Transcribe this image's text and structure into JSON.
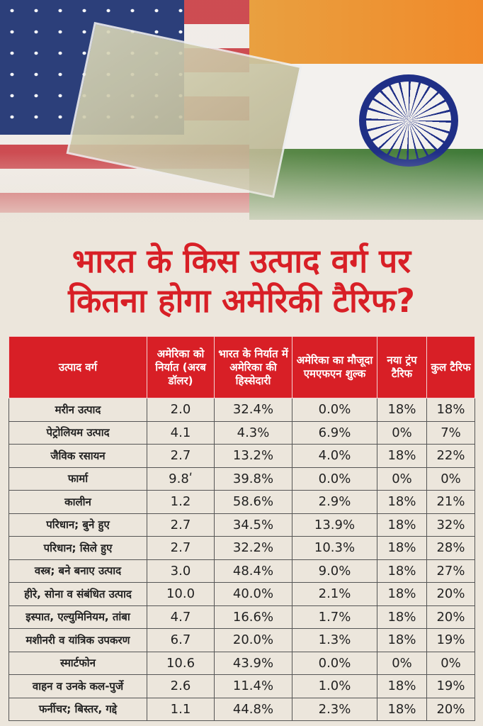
{
  "title": {
    "line1": "भारत के किस उत्पाद वर्ग पर",
    "line2": "कितना होगा अमेरिकी टैरिफ?"
  },
  "colors": {
    "accent": "#d81f26"
  },
  "table": {
    "headers": [
      "उत्पाद वर्ग",
      "अमेरिका को निर्यात (अरब डॉलर)",
      "भारत के निर्यात में अमेरिका की हिस्सेदारी",
      "अमेरिका का मौजूदा एमएफएन शुल्क",
      "नया ट्रंप टैरिफ",
      "कुल टैरिफ"
    ],
    "rows": [
      [
        "मरीन उत्पाद",
        "2.0",
        "32.4%",
        "0.0%",
        "18%",
        "18%"
      ],
      [
        "पेट्रोलियम उत्पाद",
        "4.1",
        "4.3%",
        "6.9%",
        "0%",
        "7%"
      ],
      [
        "जैविक रसायन",
        "2.7",
        "13.2%",
        "4.0%",
        "18%",
        "22%"
      ],
      [
        "फार्मा",
        "9.8ʹ",
        "39.8%",
        "0.0%",
        "0%",
        "0%"
      ],
      [
        "कालीन",
        "1.2",
        "58.6%",
        "2.9%",
        "18%",
        "21%"
      ],
      [
        "परिधान; बुने हुए",
        "2.7",
        "34.5%",
        "13.9%",
        "18%",
        "32%"
      ],
      [
        "परिधान; सिले हुए",
        "2.7",
        "32.2%",
        "10.3%",
        "18%",
        "28%"
      ],
      [
        "वस्त्र; बने बनाए उत्पाद",
        "3.0",
        "48.4%",
        "9.0%",
        "18%",
        "27%"
      ],
      [
        "हीरे, सोना व संबंधित उत्पाद",
        "10.0",
        "40.0%",
        "2.1%",
        "18%",
        "20%"
      ],
      [
        "इस्पात, एल्युमिनियम, तांबा",
        "4.7",
        "16.6%",
        "1.7%",
        "18%",
        "20%"
      ],
      [
        "मशीनरी व यांत्रिक उपकरण",
        "6.7",
        "20.0%",
        "1.3%",
        "18%",
        "19%"
      ],
      [
        "स्मार्टफोन",
        "10.6",
        "43.9%",
        "0.0%",
        "0%",
        "0%"
      ],
      [
        "वाहन व उनके कल-पुर्जे",
        "2.6",
        "11.4%",
        "1.0%",
        "18%",
        "19%"
      ],
      [
        "फर्नीचर; बिस्तर, गद्दे",
        "1.1",
        "44.8%",
        "2.3%",
        "18%",
        "20%"
      ]
    ]
  }
}
